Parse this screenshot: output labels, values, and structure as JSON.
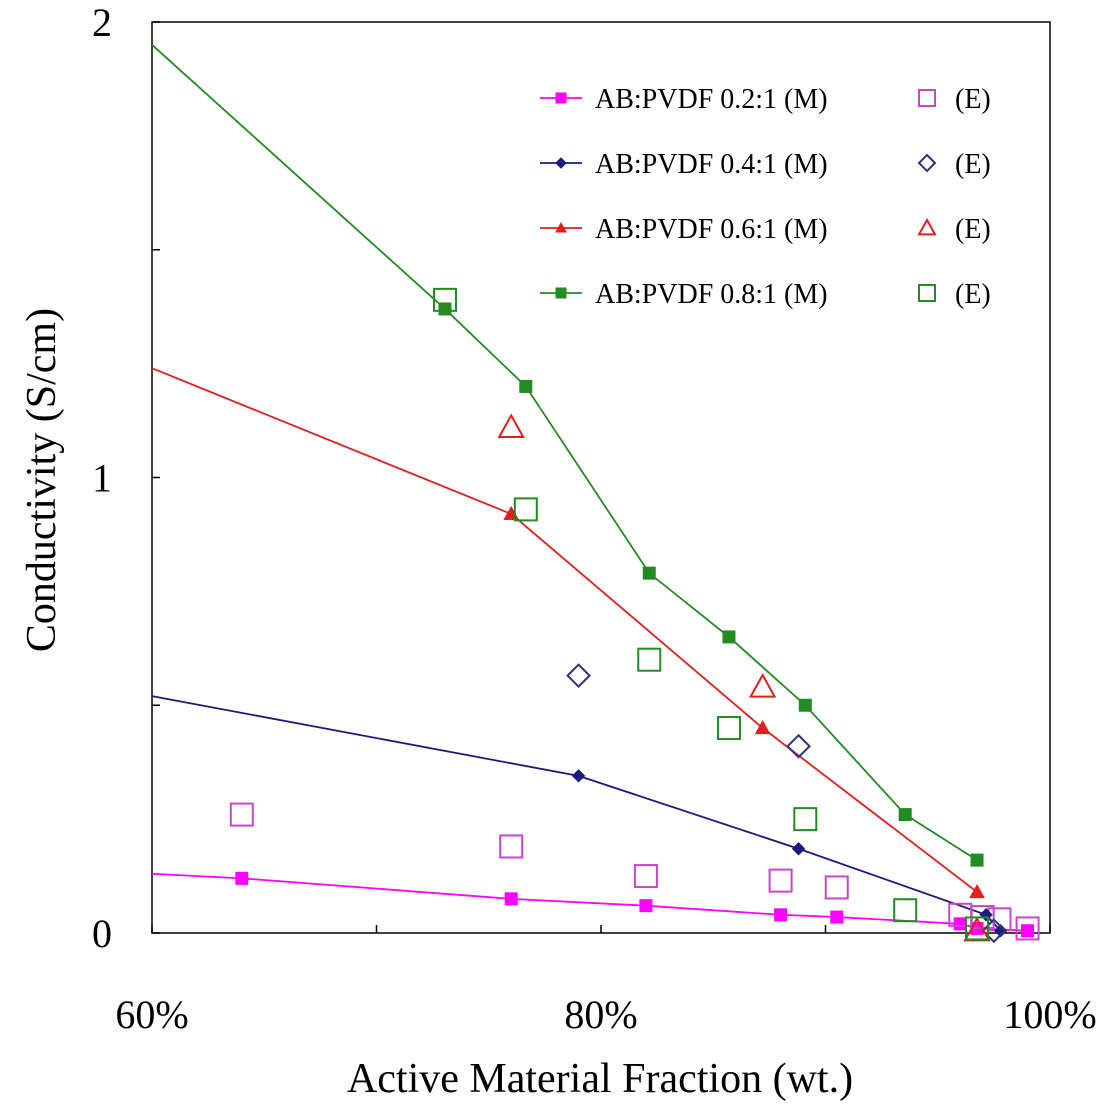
{
  "chart_data": {
    "type": "line",
    "title": "",
    "xlabel": "Active Material Fraction (wt.)",
    "ylabel": "Conductivity (S/cm)",
    "xlim": [
      0.6,
      1.0
    ],
    "ylim": [
      0,
      2
    ],
    "x_ticks": [
      0.6,
      0.7,
      0.8,
      0.9,
      1.0
    ],
    "x_tick_labels": [
      "60%",
      "",
      "80%",
      "",
      "100%"
    ],
    "y_ticks": [
      0,
      0.5,
      1,
      1.5,
      2
    ],
    "y_tick_labels": [
      "0",
      "",
      "1",
      "",
      "2"
    ],
    "grid": false,
    "legend_position": "top-right",
    "series": [
      {
        "name": "AB:PVDF 0.2:1 (M)",
        "kind": "model",
        "color": "#ff00ff",
        "marker": "square-filled",
        "x": [
          0.6,
          0.64,
          0.76,
          0.82,
          0.88,
          0.905,
          0.96,
          0.9675,
          0.99
        ],
        "y": [
          0.13,
          0.12,
          0.075,
          0.06,
          0.04,
          0.035,
          0.02,
          0.01,
          0.005
        ]
      },
      {
        "name": "(E)",
        "kind": "experiment",
        "color": "#cc44cc",
        "marker": "square-open",
        "x": [
          0.64,
          0.76,
          0.82,
          0.88,
          0.905,
          0.96,
          0.97,
          0.9775,
          0.99
        ],
        "y": [
          0.26,
          0.19,
          0.125,
          0.115,
          0.1,
          0.04,
          0.035,
          0.03,
          0.01
        ]
      },
      {
        "name": "AB:PVDF 0.4:1 (M)",
        "kind": "model",
        "color": "#1a1a80",
        "marker": "diamond-filled",
        "x": [
          0.6,
          0.79,
          0.888,
          0.9715,
          0.978
        ],
        "y": [
          0.52,
          0.345,
          0.185,
          0.04,
          0.005
        ]
      },
      {
        "name": "(E)",
        "kind": "experiment",
        "color": "#333377",
        "marker": "diamond-open",
        "x": [
          0.79,
          0.888,
          0.975
        ],
        "y": [
          0.565,
          0.41,
          0.005
        ]
      },
      {
        "name": "AB:PVDF 0.6:1 (M)",
        "kind": "model",
        "color": "#e02020",
        "marker": "triangle-filled",
        "x": [
          0.6,
          0.76,
          0.872,
          0.9675
        ],
        "y": [
          1.24,
          0.92,
          0.45,
          0.09
        ]
      },
      {
        "name": "(E)",
        "kind": "experiment",
        "color": "#e02020",
        "marker": "triangle-open",
        "x": [
          0.76,
          0.872,
          0.9675
        ],
        "y": [
          1.11,
          0.54,
          0.005
        ]
      },
      {
        "name": "AB:PVDF 0.8:1 (M)",
        "kind": "model",
        "color": "#228b22",
        "marker": "square-filled",
        "x": [
          0.6,
          0.7305,
          0.7665,
          0.8215,
          0.857,
          0.891,
          0.9355,
          0.9675
        ],
        "y": [
          1.95,
          1.37,
          1.2,
          0.79,
          0.65,
          0.5,
          0.26,
          0.16
        ]
      },
      {
        "name": "(E)",
        "kind": "experiment",
        "color": "#228b22",
        "marker": "square-open",
        "x": [
          0.7305,
          0.7665,
          0.8215,
          0.857,
          0.891,
          0.9355,
          0.9675
        ],
        "y": [
          1.39,
          0.93,
          0.6,
          0.45,
          0.25,
          0.05,
          0.01
        ]
      }
    ]
  }
}
